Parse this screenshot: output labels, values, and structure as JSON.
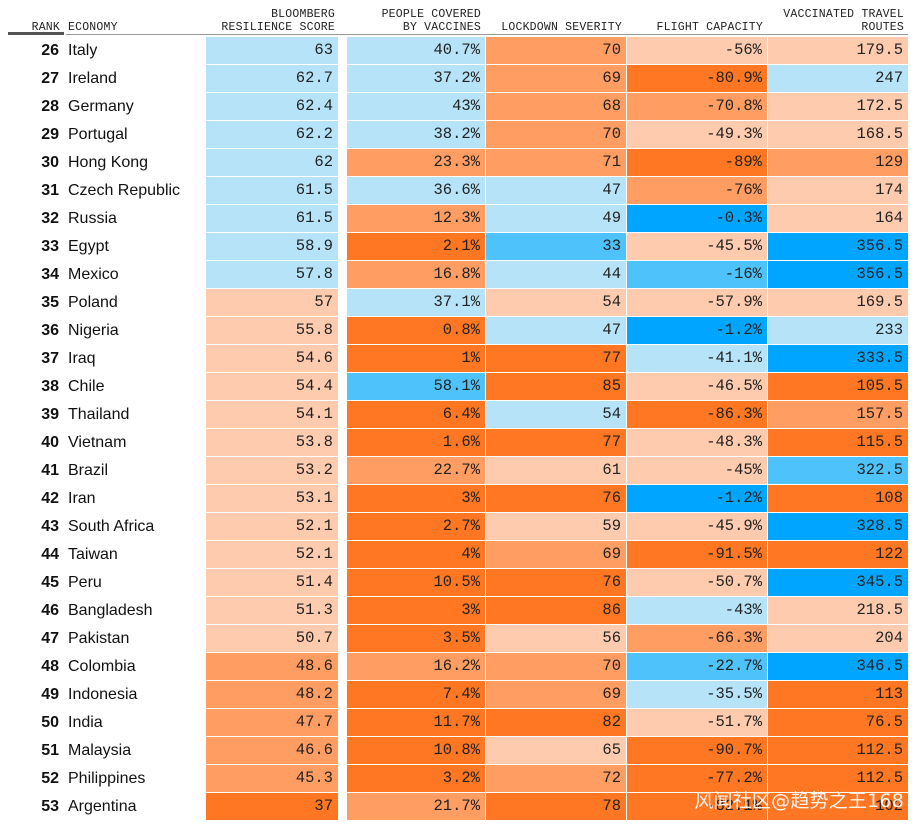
{
  "headers": {
    "rank": "RANK",
    "economy": "ECONOMY",
    "score_line1": "BLOOMBERG",
    "score_line2": "RESILIENCE SCORE",
    "vacc_line1": "PEOPLE COVERED",
    "vacc_line2": "BY VACCINES",
    "lockdown": "LOCKDOWN SEVERITY",
    "flight": "FLIGHT CAPACITY",
    "routes_line1": "VACCINATED TRAVEL",
    "routes_line2": "ROUTES"
  },
  "colors": {
    "dark_orange": "#ff7722",
    "mid_orange": "#ff9d63",
    "light_orange": "#ffcbae",
    "pale_blue": "#b6e3f8",
    "mid_blue": "#4ec2fa",
    "dark_blue": "#00a5ff"
  },
  "chart_data": {
    "type": "table",
    "columns": [
      "Rank",
      "Economy",
      "Bloomberg Resilience Score",
      "People Covered by Vaccines",
      "Lockdown Severity",
      "Flight Capacity",
      "Vaccinated Travel Routes"
    ],
    "rows": [
      {
        "rank": "26",
        "economy": "Italy",
        "score": "63",
        "vaccines": "40.7%",
        "lockdown": "70",
        "flight": "-56%",
        "routes": "179.5",
        "c": [
          "pb",
          "pb",
          "mo",
          "lo",
          "lo"
        ]
      },
      {
        "rank": "27",
        "economy": "Ireland",
        "score": "62.7",
        "vaccines": "37.2%",
        "lockdown": "69",
        "flight": "-80.9%",
        "routes": "247",
        "c": [
          "pb",
          "pb",
          "mo",
          "do",
          "pb"
        ]
      },
      {
        "rank": "28",
        "economy": "Germany",
        "score": "62.4",
        "vaccines": "43%",
        "lockdown": "68",
        "flight": "-70.8%",
        "routes": "172.5",
        "c": [
          "pb",
          "pb",
          "mo",
          "mo",
          "lo"
        ]
      },
      {
        "rank": "29",
        "economy": "Portugal",
        "score": "62.2",
        "vaccines": "38.2%",
        "lockdown": "70",
        "flight": "-49.3%",
        "routes": "168.5",
        "c": [
          "pb",
          "pb",
          "mo",
          "lo",
          "lo"
        ]
      },
      {
        "rank": "30",
        "economy": "Hong Kong",
        "score": "62",
        "vaccines": "23.3%",
        "lockdown": "71",
        "flight": "-89%",
        "routes": "129",
        "c": [
          "pb",
          "mo",
          "mo",
          "do",
          "mo"
        ]
      },
      {
        "rank": "31",
        "economy": "Czech Republic",
        "score": "61.5",
        "vaccines": "36.6%",
        "lockdown": "47",
        "flight": "-76%",
        "routes": "174",
        "c": [
          "pb",
          "pb",
          "pb",
          "mo",
          "lo"
        ]
      },
      {
        "rank": "32",
        "economy": "Russia",
        "score": "61.5",
        "vaccines": "12.3%",
        "lockdown": "49",
        "flight": "-0.3%",
        "routes": "164",
        "c": [
          "pb",
          "mo",
          "pb",
          "db",
          "lo"
        ]
      },
      {
        "rank": "33",
        "economy": "Egypt",
        "score": "58.9",
        "vaccines": "2.1%",
        "lockdown": "33",
        "flight": "-45.5%",
        "routes": "356.5",
        "c": [
          "pb",
          "do",
          "mb",
          "lo",
          "db"
        ]
      },
      {
        "rank": "34",
        "economy": "Mexico",
        "score": "57.8",
        "vaccines": "16.8%",
        "lockdown": "44",
        "flight": "-16%",
        "routes": "356.5",
        "c": [
          "pb",
          "mo",
          "pb",
          "mb",
          "db"
        ]
      },
      {
        "rank": "35",
        "economy": "Poland",
        "score": "57",
        "vaccines": "37.1%",
        "lockdown": "54",
        "flight": "-57.9%",
        "routes": "169.5",
        "c": [
          "lo",
          "pb",
          "lo",
          "lo",
          "lo"
        ]
      },
      {
        "rank": "36",
        "economy": "Nigeria",
        "score": "55.8",
        "vaccines": "0.8%",
        "lockdown": "47",
        "flight": "-1.2%",
        "routes": "233",
        "c": [
          "lo",
          "do",
          "pb",
          "db",
          "pb"
        ]
      },
      {
        "rank": "37",
        "economy": "Iraq",
        "score": "54.6",
        "vaccines": "1%",
        "lockdown": "77",
        "flight": "-41.1%",
        "routes": "333.5",
        "c": [
          "lo",
          "do",
          "do",
          "pb",
          "db"
        ]
      },
      {
        "rank": "38",
        "economy": "Chile",
        "score": "54.4",
        "vaccines": "58.1%",
        "lockdown": "85",
        "flight": "-46.5%",
        "routes": "105.5",
        "c": [
          "lo",
          "mb",
          "do",
          "lo",
          "do"
        ]
      },
      {
        "rank": "39",
        "economy": "Thailand",
        "score": "54.1",
        "vaccines": "6.4%",
        "lockdown": "54",
        "flight": "-86.3%",
        "routes": "157.5",
        "c": [
          "lo",
          "do",
          "pb",
          "do",
          "mo"
        ]
      },
      {
        "rank": "40",
        "economy": "Vietnam",
        "score": "53.8",
        "vaccines": "1.6%",
        "lockdown": "77",
        "flight": "-48.3%",
        "routes": "115.5",
        "c": [
          "lo",
          "do",
          "do",
          "lo",
          "do"
        ]
      },
      {
        "rank": "41",
        "economy": "Brazil",
        "score": "53.2",
        "vaccines": "22.7%",
        "lockdown": "61",
        "flight": "-45%",
        "routes": "322.5",
        "c": [
          "lo",
          "mo",
          "lo",
          "lo",
          "mb"
        ]
      },
      {
        "rank": "42",
        "economy": "Iran",
        "score": "53.1",
        "vaccines": "3%",
        "lockdown": "76",
        "flight": "-1.2%",
        "routes": "108",
        "c": [
          "lo",
          "do",
          "do",
          "db",
          "do"
        ]
      },
      {
        "rank": "43",
        "economy": "South Africa",
        "score": "52.1",
        "vaccines": "2.7%",
        "lockdown": "59",
        "flight": "-45.9%",
        "routes": "328.5",
        "c": [
          "lo",
          "do",
          "lo",
          "lo",
          "db"
        ]
      },
      {
        "rank": "44",
        "economy": "Taiwan",
        "score": "52.1",
        "vaccines": "4%",
        "lockdown": "69",
        "flight": "-91.5%",
        "routes": "122",
        "c": [
          "lo",
          "do",
          "mo",
          "do",
          "do"
        ]
      },
      {
        "rank": "45",
        "economy": "Peru",
        "score": "51.4",
        "vaccines": "10.5%",
        "lockdown": "76",
        "flight": "-50.7%",
        "routes": "345.5",
        "c": [
          "lo",
          "do",
          "do",
          "lo",
          "db"
        ]
      },
      {
        "rank": "46",
        "economy": "Bangladesh",
        "score": "51.3",
        "vaccines": "3%",
        "lockdown": "86",
        "flight": "-43%",
        "routes": "218.5",
        "c": [
          "lo",
          "do",
          "do",
          "pb",
          "lo"
        ]
      },
      {
        "rank": "47",
        "economy": "Pakistan",
        "score": "50.7",
        "vaccines": "3.5%",
        "lockdown": "56",
        "flight": "-66.3%",
        "routes": "204",
        "c": [
          "lo",
          "do",
          "lo",
          "mo",
          "lo"
        ]
      },
      {
        "rank": "48",
        "economy": "Colombia",
        "score": "48.6",
        "vaccines": "16.2%",
        "lockdown": "70",
        "flight": "-22.7%",
        "routes": "346.5",
        "c": [
          "mo",
          "mo",
          "mo",
          "mb",
          "db"
        ]
      },
      {
        "rank": "49",
        "economy": "Indonesia",
        "score": "48.2",
        "vaccines": "7.4%",
        "lockdown": "69",
        "flight": "-35.5%",
        "routes": "113",
        "c": [
          "mo",
          "do",
          "mo",
          "pb",
          "do"
        ]
      },
      {
        "rank": "50",
        "economy": "India",
        "score": "47.7",
        "vaccines": "11.7%",
        "lockdown": "82",
        "flight": "-51.7%",
        "routes": "76.5",
        "c": [
          "mo",
          "do",
          "do",
          "lo",
          "do"
        ]
      },
      {
        "rank": "51",
        "economy": "Malaysia",
        "score": "46.6",
        "vaccines": "10.8%",
        "lockdown": "65",
        "flight": "-90.7%",
        "routes": "112.5",
        "c": [
          "mo",
          "do",
          "lo",
          "do",
          "do"
        ]
      },
      {
        "rank": "52",
        "economy": "Philippines",
        "score": "45.3",
        "vaccines": "3.2%",
        "lockdown": "72",
        "flight": "-77.2%",
        "routes": "112.5",
        "c": [
          "mo",
          "do",
          "mo",
          "do",
          "do"
        ]
      },
      {
        "rank": "53",
        "economy": "Argentina",
        "score": "37",
        "vaccines": "21.7%",
        "lockdown": "78",
        "flight": "-82.1%",
        "routes": "102",
        "c": [
          "do",
          "mo",
          "do",
          "do",
          "do"
        ]
      }
    ]
  },
  "watermark": "风闻社区@趋势之王168"
}
